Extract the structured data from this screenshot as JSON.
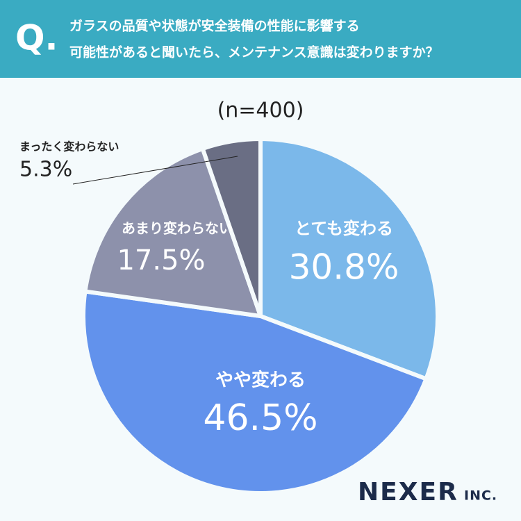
{
  "chart_data": {
    "type": "pie",
    "q_mark": "Q.",
    "title_lines": [
      "ガラスの品質や状態が安全装備の性能に影響する",
      "可能性があると聞いたら、メンテナンス意識は変わりますか？"
    ],
    "subtitle": "(n=400)",
    "categories": [
      "とても変わる",
      "やや変わる",
      "あまり変わらない",
      "まったく変わらない"
    ],
    "values": [
      30.8,
      46.5,
      17.5,
      5.3
    ],
    "value_labels": [
      "30.8%",
      "46.5%",
      "17.5%",
      "5.3%"
    ],
    "colors": [
      "#7bb8ea",
      "#6292ec",
      "#8d91ab",
      "#6a6e84"
    ],
    "brand": "NEXER",
    "brand_suffix": "INC."
  }
}
